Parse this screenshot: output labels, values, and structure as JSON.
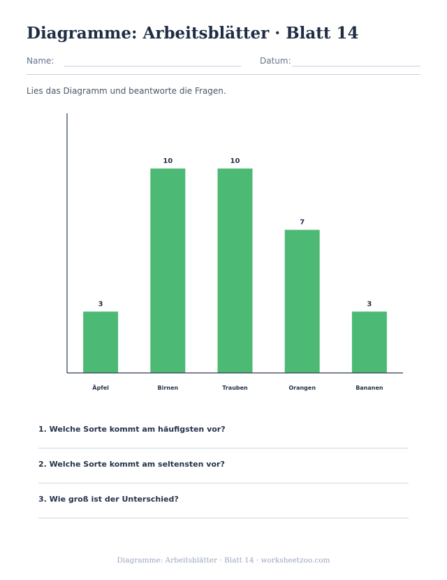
{
  "worksheet": {
    "title": "Diagramme: Arbeitsblätter · Blatt 14",
    "name_label": "Name:",
    "date_label": "Datum:",
    "instruction": "Lies das Diagramm und beantworte die Fragen.",
    "questions": [
      "1. Welche Sorte kommt am häufigsten vor?",
      "2. Welche Sorte kommt am seltensten vor?",
      "3. Wie groß ist der Unterschied?"
    ],
    "footer": "Diagramme: Arbeitsblätter · Blatt 14 · worksheetzoo.com"
  },
  "chart_data": {
    "type": "bar",
    "categories": [
      "Äpfel",
      "Birnen",
      "Trauben",
      "Orangen",
      "Bananen"
    ],
    "values": [
      3,
      10,
      10,
      7,
      3
    ],
    "ylim": [
      0,
      12.7
    ],
    "grid": false,
    "bar_color": "#4cb974",
    "axis_color": "#2c3a4f"
  }
}
